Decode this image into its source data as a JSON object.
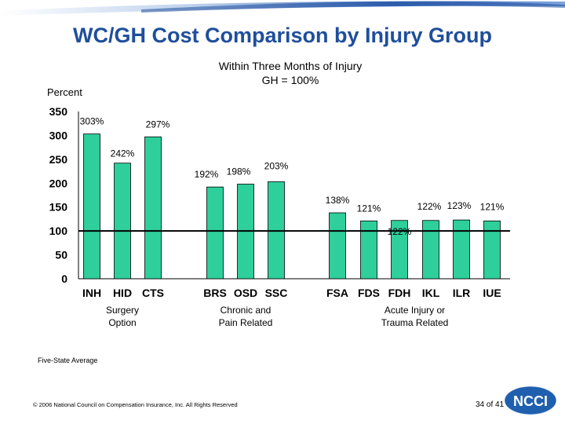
{
  "slide": {
    "title": "WC/GH Cost Comparison by Injury Group",
    "subtitle_line1": "Within Three Months of Injury",
    "subtitle_line2": "GH = 100%",
    "note": "Five-State Average",
    "copyright": "© 2006 National Council on Compensation Insurance, Inc. All Rights Reserved",
    "page": "34 of 41",
    "logo_text": "NCCI"
  },
  "colors": {
    "title": "#1f4e9c",
    "bar_fill": "#2ecf9b",
    "bar_stroke": "#000000",
    "reference_line": "#000000",
    "logo": "#1f5fae"
  },
  "chart_data": {
    "type": "bar",
    "title": "Within Three Months of Injury",
    "ylabel": "Percent",
    "ylim": [
      0,
      350
    ],
    "yticks": [
      0,
      50,
      100,
      150,
      200,
      250,
      300,
      350
    ],
    "reference_line": 100,
    "grid": false,
    "categories": [
      "INH",
      "HID",
      "CTS",
      "BRS",
      "OSD",
      "SSC",
      "FSA",
      "FDS",
      "FDH",
      "IKL",
      "ILR",
      "IUE"
    ],
    "values": [
      303,
      242,
      297,
      192,
      198,
      203,
      138,
      121,
      122,
      122,
      123,
      121
    ],
    "value_labels": [
      "303%",
      "242%",
      "297%",
      "192%",
      "198%",
      "203%",
      "138%",
      "121%",
      "122%",
      "122%",
      "123%",
      "121%"
    ],
    "groups": [
      {
        "name_lines": [
          "Surgery",
          "Option"
        ],
        "categories": [
          "INH",
          "HID",
          "CTS"
        ]
      },
      {
        "name_lines": [
          "Chronic and",
          "Pain Related"
        ],
        "categories": [
          "BRS",
          "OSD",
          "SSC"
        ]
      },
      {
        "name_lines": [
          "Acute Injury or",
          "Trauma Related"
        ],
        "categories": [
          "FSA",
          "FDS",
          "FDH",
          "IKL",
          "ILR",
          "IUE"
        ]
      }
    ]
  }
}
